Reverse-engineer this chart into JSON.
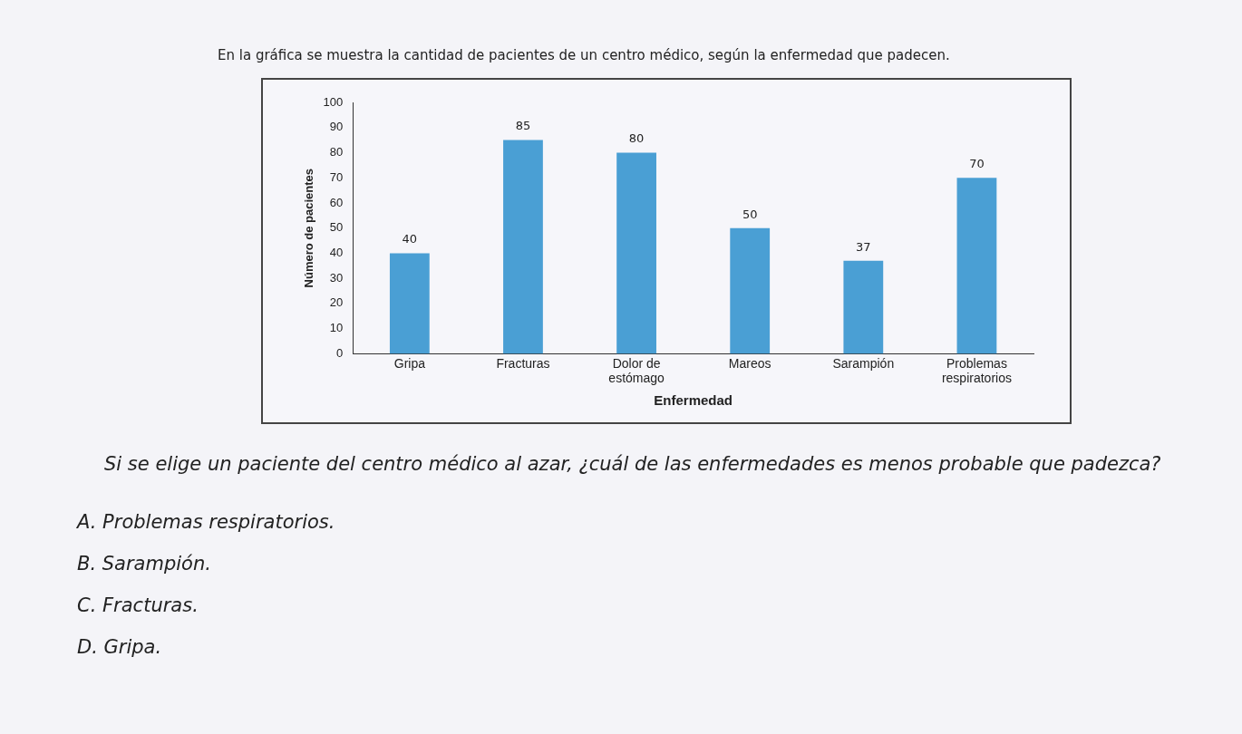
{
  "chart_data": {
    "type": "bar",
    "title": "En la gráfica se muestra la cantidad de pacientes de un centro médico, según la enfermedad que padecen.",
    "xlabel": "Enfermedad",
    "ylabel": "Número de pacientes",
    "categories": [
      "Gripa",
      "Fracturas",
      "Dolor de estómago",
      "Mareos",
      "Sarampión",
      "Problemas respiratorios"
    ],
    "values": [
      40,
      85,
      80,
      50,
      37,
      70
    ],
    "color": "#4a9fd4",
    "ylim": [
      0,
      100
    ],
    "yticks": [
      0,
      10,
      20,
      30,
      40,
      50,
      60,
      70,
      80,
      90,
      100
    ],
    "grid": false,
    "data_labels": true,
    "legend": false,
    "annotations": [
      "Si se elige un paciente del centro médico al azar, ¿cuál de las enfermedades es menos probable que padezca?",
      "A. Problemas respiratorios.",
      "B. Sarampión.",
      "C. Fracturas.",
      "D. Gripa."
    ]
  }
}
